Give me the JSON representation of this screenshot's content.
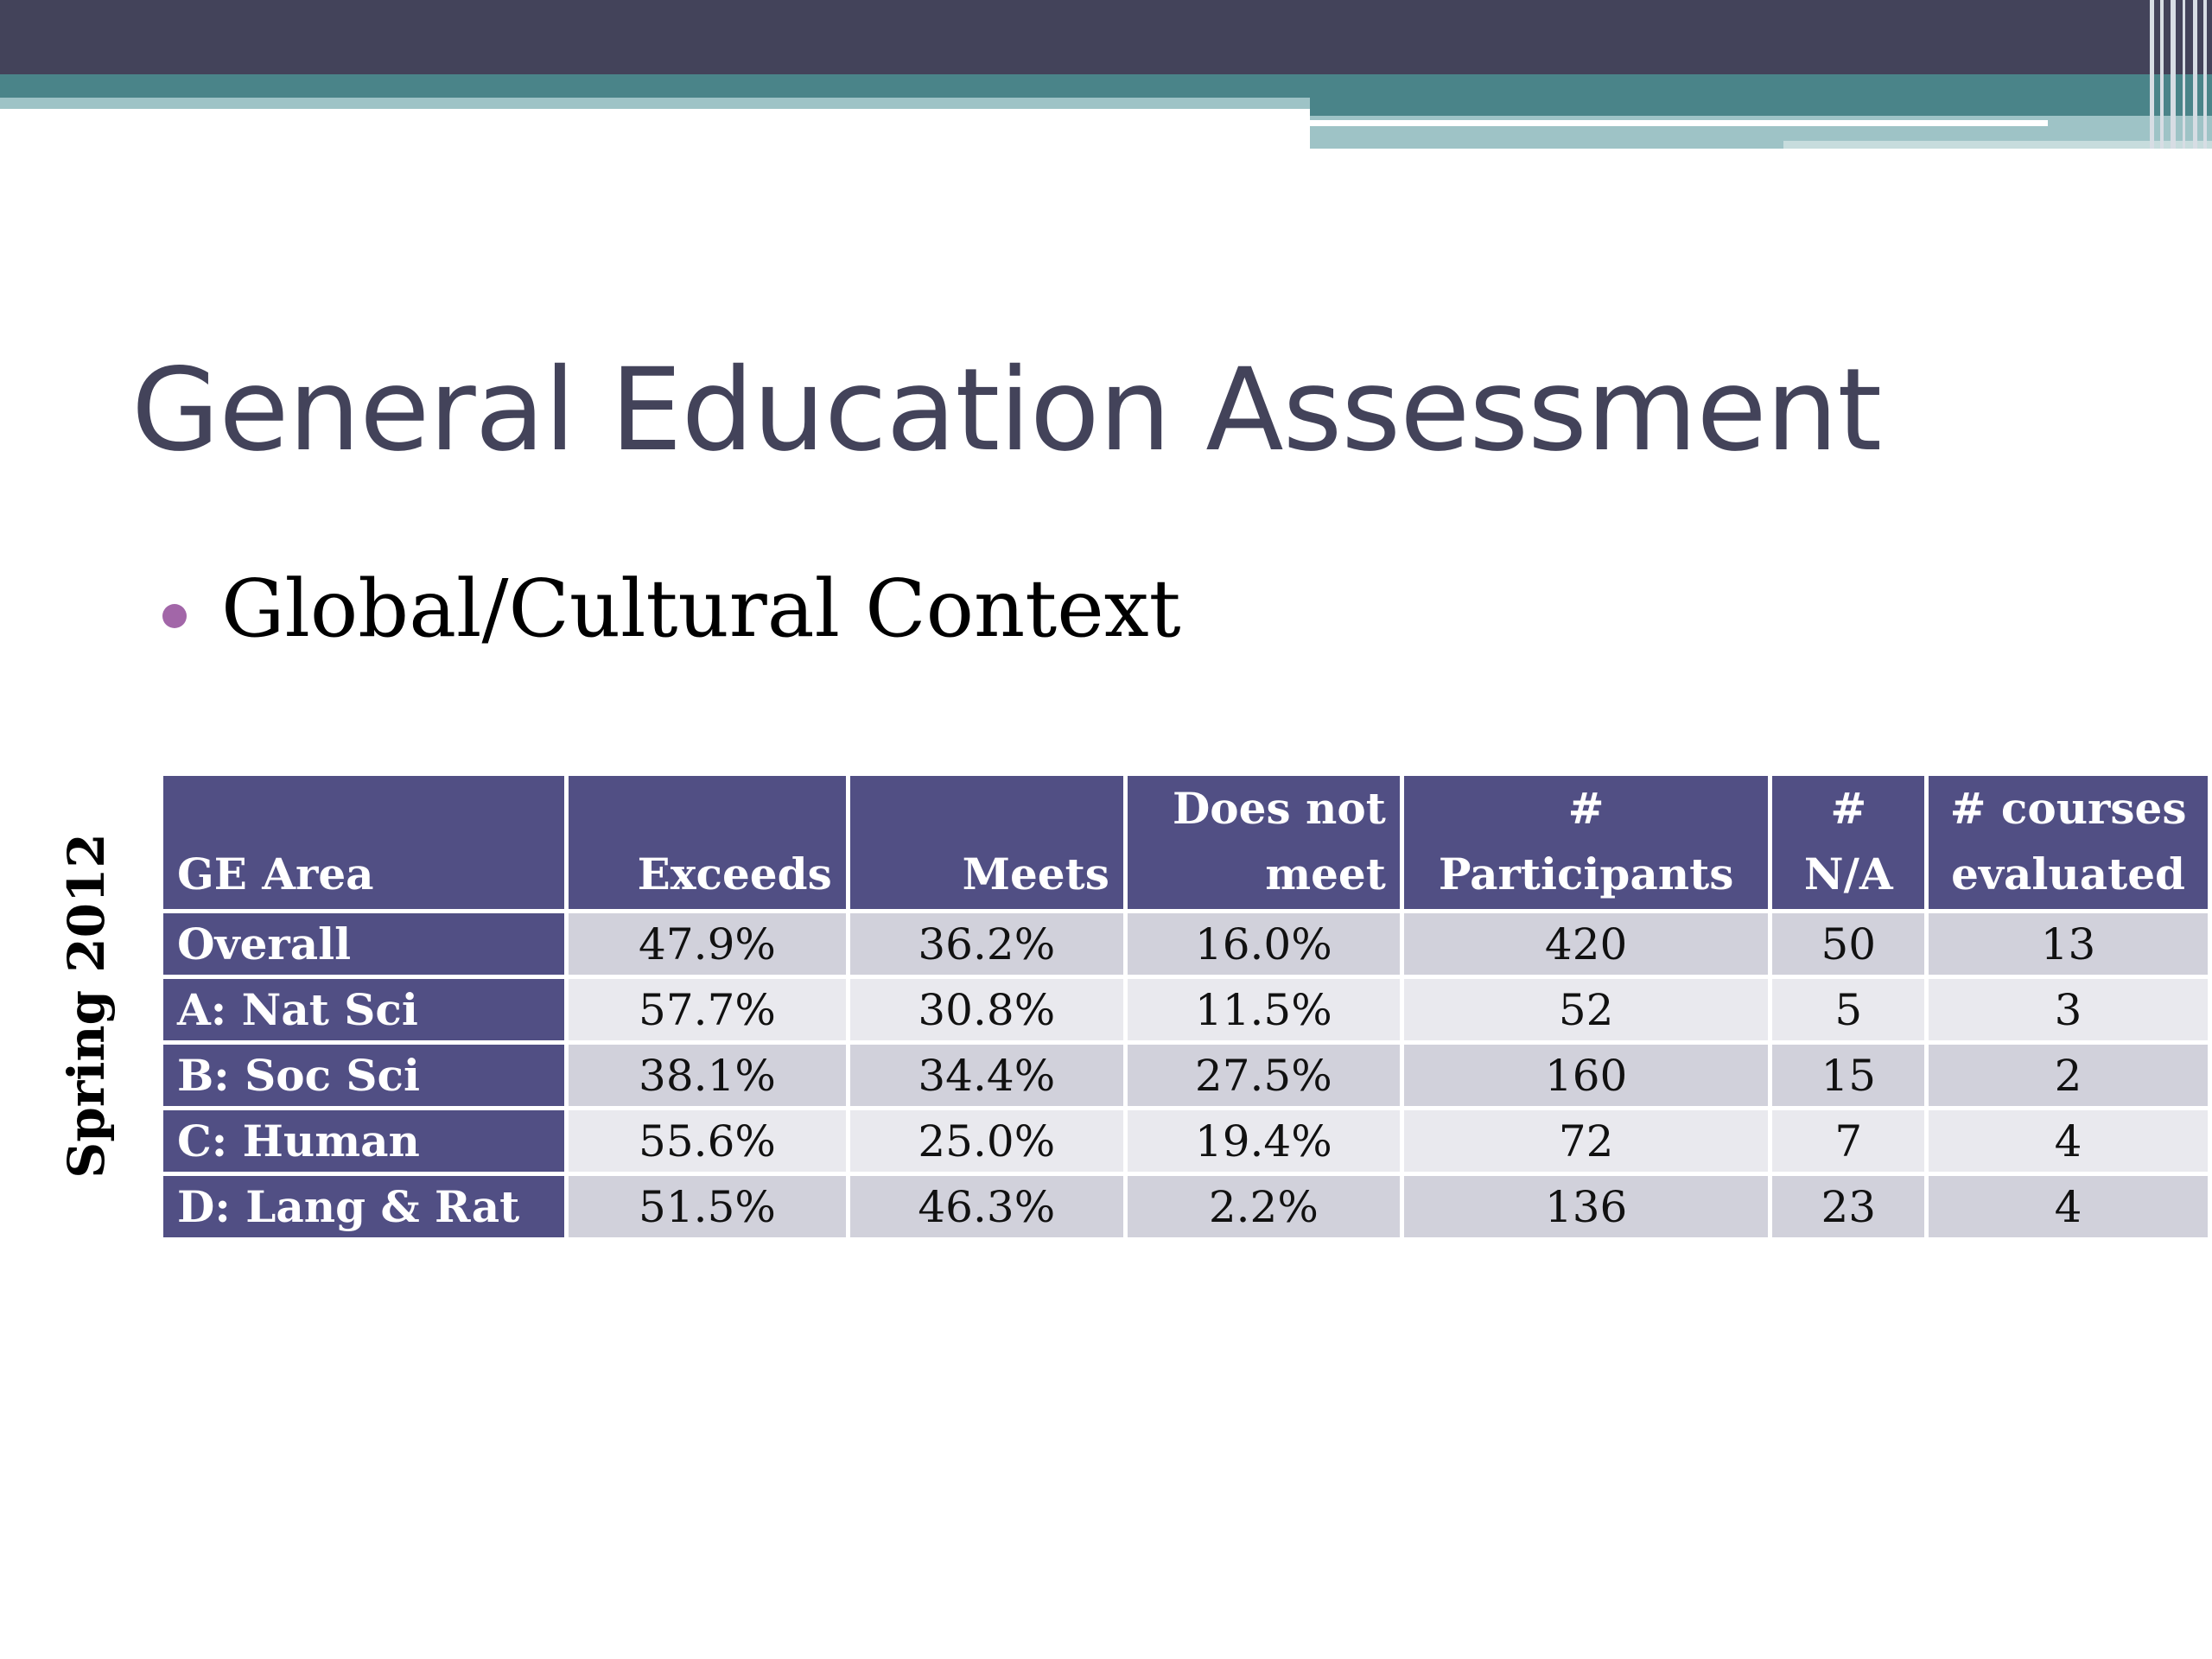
{
  "slide": {
    "title": "General Education Assessment",
    "bullet": "Global/Cultural Context",
    "side_label": "Spring 2012"
  },
  "colors": {
    "header_band_dark": "#43435a",
    "header_band_teal": "#4a8489",
    "title_text": "#43435a",
    "bullet_dot": "#a266a8",
    "table_header": "#514f84",
    "row_band_dark": "#d1d1db",
    "row_band_light": "#e9e9ee"
  },
  "table": {
    "headers": [
      {
        "line1": "",
        "line2": "GE Area"
      },
      {
        "line1": "",
        "line2": "Exceeds"
      },
      {
        "line1": "",
        "line2": "Meets"
      },
      {
        "line1": "Does not",
        "line2": "meet"
      },
      {
        "line1": "#",
        "line2": "Participants"
      },
      {
        "line1": "#",
        "line2": "N/A"
      },
      {
        "line1": "# courses",
        "line2": "evaluated"
      }
    ],
    "rows": [
      [
        "Overall",
        "47.9%",
        "36.2%",
        "16.0%",
        "420",
        "50",
        "13"
      ],
      [
        "A: Nat Sci",
        "57.7%",
        "30.8%",
        "11.5%",
        "52",
        "5",
        "3"
      ],
      [
        "B: Soc Sci",
        "38.1%",
        "34.4%",
        "27.5%",
        "160",
        "15",
        "2"
      ],
      [
        "C: Human",
        "55.6%",
        "25.0%",
        "19.4%",
        "72",
        "7",
        "4"
      ],
      [
        "D: Lang & Rat",
        "51.5%",
        "46.3%",
        "2.2%",
        "136",
        "23",
        "4"
      ]
    ]
  }
}
